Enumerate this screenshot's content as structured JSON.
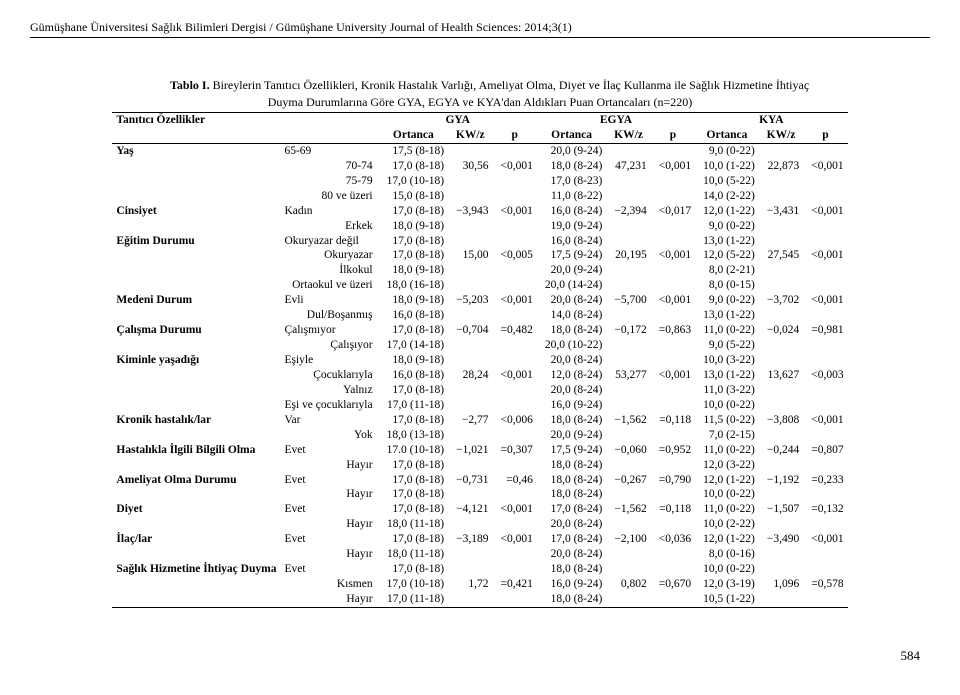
{
  "journal": "Gümüşhane Üniversitesi Sağlık Bilimleri Dergisi / Gümüşhane University Journal of Health Sciences: 2014;3(1)",
  "tableLabel": "Tablo I.",
  "tableTitle": "Bireylerin Tanıtıcı Özellikleri, Kronik Hastalık Varlığı, Ameliyat Olma, Diyet ve İlaç Kullanma ile Sağlık Hizmetine İhtiyaç",
  "tableSubtitle": "Duyma Durumlarına Göre GYA, EGYA ve KYA'dan Aldıkları Puan Ortancaları (n=220)",
  "pageNum": "584",
  "headers": {
    "col1": "Tanıtıcı Özellikler",
    "g1": "GYA",
    "g2": "EGYA",
    "g3": "KYA",
    "ort": "Ortanca",
    "kwz": "KW/z",
    "p": "p"
  },
  "rows": [
    {
      "main": "Yaş",
      "sub": "65-69",
      "gya": "17,5 (8-18)",
      "gkw": "",
      "gp": "",
      "egya": "20,0 (9-24)",
      "ekw": "",
      "ep": "",
      "kya": "9,0 (0-22)",
      "kkw": "",
      "kp": ""
    },
    {
      "main": "",
      "sub": "70-74",
      "gya": "17,0 (8-18)",
      "gkw": "30,56",
      "gp": "<0,001",
      "egya": "18,0 (8-24)",
      "ekw": "47,231",
      "ep": "<0,001",
      "kya": "10,0 (1-22)",
      "kkw": "22,873",
      "kp": "<0,001"
    },
    {
      "main": "",
      "sub": "75-79",
      "gya": "17,0 (10-18)",
      "gkw": "",
      "gp": "",
      "egya": "17,0 (8-23)",
      "ekw": "",
      "ep": "",
      "kya": "10,0 (5-22)",
      "kkw": "",
      "kp": ""
    },
    {
      "main": "",
      "sub": "80 ve üzeri",
      "gya": "15,0 (8-18)",
      "gkw": "",
      "gp": "",
      "egya": "11,0 (8-22)",
      "ekw": "",
      "ep": "",
      "kya": "14,0 (2-22)",
      "kkw": "",
      "kp": ""
    },
    {
      "main": "Cinsiyet",
      "sub": "Kadın",
      "gya": "17,0 (8-18)",
      "gkw": "−3,943",
      "gp": "<0,001",
      "egya": "16,0 (8-24)",
      "ekw": "−2,394",
      "ep": "<0,017",
      "kya": "12,0 (1-22)",
      "kkw": "−3,431",
      "kp": "<0,001"
    },
    {
      "main": "",
      "sub": "Erkek",
      "gya": "18,0 (9-18)",
      "gkw": "",
      "gp": "",
      "egya": "19,0 (9-24)",
      "ekw": "",
      "ep": "",
      "kya": "9,0 (0-22)",
      "kkw": "",
      "kp": ""
    },
    {
      "main": "Eğitim Durumu",
      "sub": "Okuryazar değil",
      "gya": "17,0 (8-18)",
      "gkw": "",
      "gp": "",
      "egya": "16,0 (8-24)",
      "ekw": "",
      "ep": "",
      "kya": "13,0 (1-22)",
      "kkw": "",
      "kp": ""
    },
    {
      "main": "",
      "sub": "Okuryazar",
      "gya": "17,0 (8-18)",
      "gkw": "15,00",
      "gp": "<0,005",
      "egya": "17,5 (9-24)",
      "ekw": "20,195",
      "ep": "<0,001",
      "kya": "12,0 (5-22)",
      "kkw": "27,545",
      "kp": "<0,001"
    },
    {
      "main": "",
      "sub": "İlkokul",
      "gya": "18,0 (9-18)",
      "gkw": "",
      "gp": "",
      "egya": "20,0 (9-24)",
      "ekw": "",
      "ep": "",
      "kya": "8,0 (2-21)",
      "kkw": "",
      "kp": ""
    },
    {
      "main": "",
      "sub": "Ortaokul ve üzeri",
      "gya": "18,0 (16-18)",
      "gkw": "",
      "gp": "",
      "egya": "20,0 (14-24)",
      "ekw": "",
      "ep": "",
      "kya": "8,0 (0-15)",
      "kkw": "",
      "kp": ""
    },
    {
      "main": "Medeni Durum",
      "sub": "Evli",
      "gya": "18,0 (9-18)",
      "gkw": "−5,203",
      "gp": "<0,001",
      "egya": "20,0 (8-24)",
      "ekw": "−5,700",
      "ep": "<0,001",
      "kya": "9,0 (0-22)",
      "kkw": "−3,702",
      "kp": "<0,001"
    },
    {
      "main": "",
      "sub": "Dul/Boşanmış",
      "gya": "16,0 (8-18)",
      "gkw": "",
      "gp": "",
      "egya": "14,0 (8-24)",
      "ekw": "",
      "ep": "",
      "kya": "13,0 (1-22)",
      "kkw": "",
      "kp": ""
    },
    {
      "main": "Çalışma Durumu",
      "sub": "Çalışmıyor",
      "gya": "17,0 (8-18)",
      "gkw": "−0,704",
      "gp": "=0,482",
      "egya": "18,0 (8-24)",
      "ekw": "−0,172",
      "ep": "=0,863",
      "kya": "11,0 (0-22)",
      "kkw": "−0,024",
      "kp": "=0,981"
    },
    {
      "main": "",
      "sub": "Çalışıyor",
      "gya": "17,0 (14-18)",
      "gkw": "",
      "gp": "",
      "egya": "20,0 (10-22)",
      "ekw": "",
      "ep": "",
      "kya": "9,0 (5-22)",
      "kkw": "",
      "kp": ""
    },
    {
      "main": "Kiminle yaşadığı",
      "sub": "Eşiyle",
      "gya": "18,0 (9-18)",
      "gkw": "",
      "gp": "",
      "egya": "20,0 (8-24)",
      "ekw": "",
      "ep": "",
      "kya": "10,0 (3-22)",
      "kkw": "",
      "kp": ""
    },
    {
      "main": "",
      "sub": "Çocuklarıyla",
      "gya": "16,0 (8-18)",
      "gkw": "28,24",
      "gp": "<0,001",
      "egya": "12,0 (8-24)",
      "ekw": "53,277",
      "ep": "<0,001",
      "kya": "13,0 (1-22)",
      "kkw": "13,627",
      "kp": "<0,003"
    },
    {
      "main": "",
      "sub": "Yalnız",
      "gya": "17,0 (8-18)",
      "gkw": "",
      "gp": "",
      "egya": "20,0 (8-24)",
      "ekw": "",
      "ep": "",
      "kya": "11,0 (3-22)",
      "kkw": "",
      "kp": ""
    },
    {
      "main": "",
      "sub": "Eşi ve çocuklarıyla",
      "gya": "17,0 (11-18)",
      "gkw": "",
      "gp": "",
      "egya": "16,0 (9-24)",
      "ekw": "",
      "ep": "",
      "kya": "10,0 (0-22)",
      "kkw": "",
      "kp": ""
    },
    {
      "main": "Kronik hastalık/lar",
      "sub": "Var",
      "gya": "17,0 (8-18)",
      "gkw": "−2,77",
      "gp": "<0,006",
      "egya": "18,0 (8-24)",
      "ekw": "−1,562",
      "ep": "=0,118",
      "kya": "11,5 (0-22)",
      "kkw": "−3,808",
      "kp": "<0,001"
    },
    {
      "main": "",
      "sub": "Yok",
      "gya": "18,0 (13-18)",
      "gkw": "",
      "gp": "",
      "egya": "20,0 (9-24)",
      "ekw": "",
      "ep": "",
      "kya": "7,0 (2-15)",
      "kkw": "",
      "kp": ""
    },
    {
      "main": "Hastalıkla İlgili Bilgili Olma",
      "sub": "Evet",
      "gya": "17.0 (10-18)",
      "gkw": "−1,021",
      "gp": "=0,307",
      "egya": "17,5 (9-24)",
      "ekw": "−0,060",
      "ep": "=0,952",
      "kya": "11,0 (0-22)",
      "kkw": "−0,244",
      "kp": "=0,807"
    },
    {
      "main": "",
      "sub": "Hayır",
      "gya": "17,0 (8-18)",
      "gkw": "",
      "gp": "",
      "egya": "18,0 (8-24)",
      "ekw": "",
      "ep": "",
      "kya": "12,0 (3-22)",
      "kkw": "",
      "kp": ""
    },
    {
      "main": "Ameliyat Olma Durumu",
      "sub": "Evet",
      "gya": "17,0 (8-18)",
      "gkw": "−0,731",
      "gp": "=0,46",
      "egya": "18,0 (8-24)",
      "ekw": "−0,267",
      "ep": "=0,790",
      "kya": "12,0 (1-22)",
      "kkw": "−1,192",
      "kp": "=0,233"
    },
    {
      "main": "",
      "sub": "Hayır",
      "gya": "17,0 (8-18)",
      "gkw": "",
      "gp": "",
      "egya": "18,0 (8-24)",
      "ekw": "",
      "ep": "",
      "kya": "10,0 (0-22)",
      "kkw": "",
      "kp": ""
    },
    {
      "main": "Diyet",
      "sub": "Evet",
      "gya": "17,0 (8-18)",
      "gkw": "−4,121",
      "gp": "<0,001",
      "egya": "17,0 (8-24)",
      "ekw": "−1,562",
      "ep": "=0,118",
      "kya": "11,0 (0-22)",
      "kkw": "−1,507",
      "kp": "=0,132"
    },
    {
      "main": "",
      "sub": "Hayır",
      "gya": "18,0 (11-18)",
      "gkw": "",
      "gp": "",
      "egya": "20,0 (8-24)",
      "ekw": "",
      "ep": "",
      "kya": "10,0 (2-22)",
      "kkw": "",
      "kp": ""
    },
    {
      "main": "İlaç/lar",
      "sub": "Evet",
      "gya": "17,0 (8-18)",
      "gkw": "−3,189",
      "gp": "<0,001",
      "egya": "17,0 (8-24)",
      "ekw": "−2,100",
      "ep": "<0,036",
      "kya": "12,0 (1-22)",
      "kkw": "−3,490",
      "kp": "<0,001"
    },
    {
      "main": "",
      "sub": "Hayır",
      "gya": "18,0 (11-18)",
      "gkw": "",
      "gp": "",
      "egya": "20,0 (8-24)",
      "ekw": "",
      "ep": "",
      "kya": "8,0 (0-16)",
      "kkw": "",
      "kp": ""
    },
    {
      "main": "Sağlık Hizmetine İhtiyaç Duyma",
      "sub": "Evet",
      "gya": "17,0 (8-18)",
      "gkw": "",
      "gp": "",
      "egya": "18,0 (8-24)",
      "ekw": "",
      "ep": "",
      "kya": "10,0 (0-22)",
      "kkw": "",
      "kp": ""
    },
    {
      "main": "",
      "sub": "Kısmen",
      "gya": "17,0 (10-18)",
      "gkw": "1,72",
      "gp": "=0,421",
      "egya": "16,0 (9-24)",
      "ekw": "0,802",
      "ep": "=0,670",
      "kya": "12,0 (3-19)",
      "kkw": "1,096",
      "kp": "=0,578"
    },
    {
      "main": "",
      "sub": "Hayır",
      "gya": "17,0 (11-18)",
      "gkw": "",
      "gp": "",
      "egya": "18,0 (8-24)",
      "ekw": "",
      "ep": "",
      "kya": "10,5 (1-22)",
      "kkw": "",
      "kp": ""
    }
  ]
}
